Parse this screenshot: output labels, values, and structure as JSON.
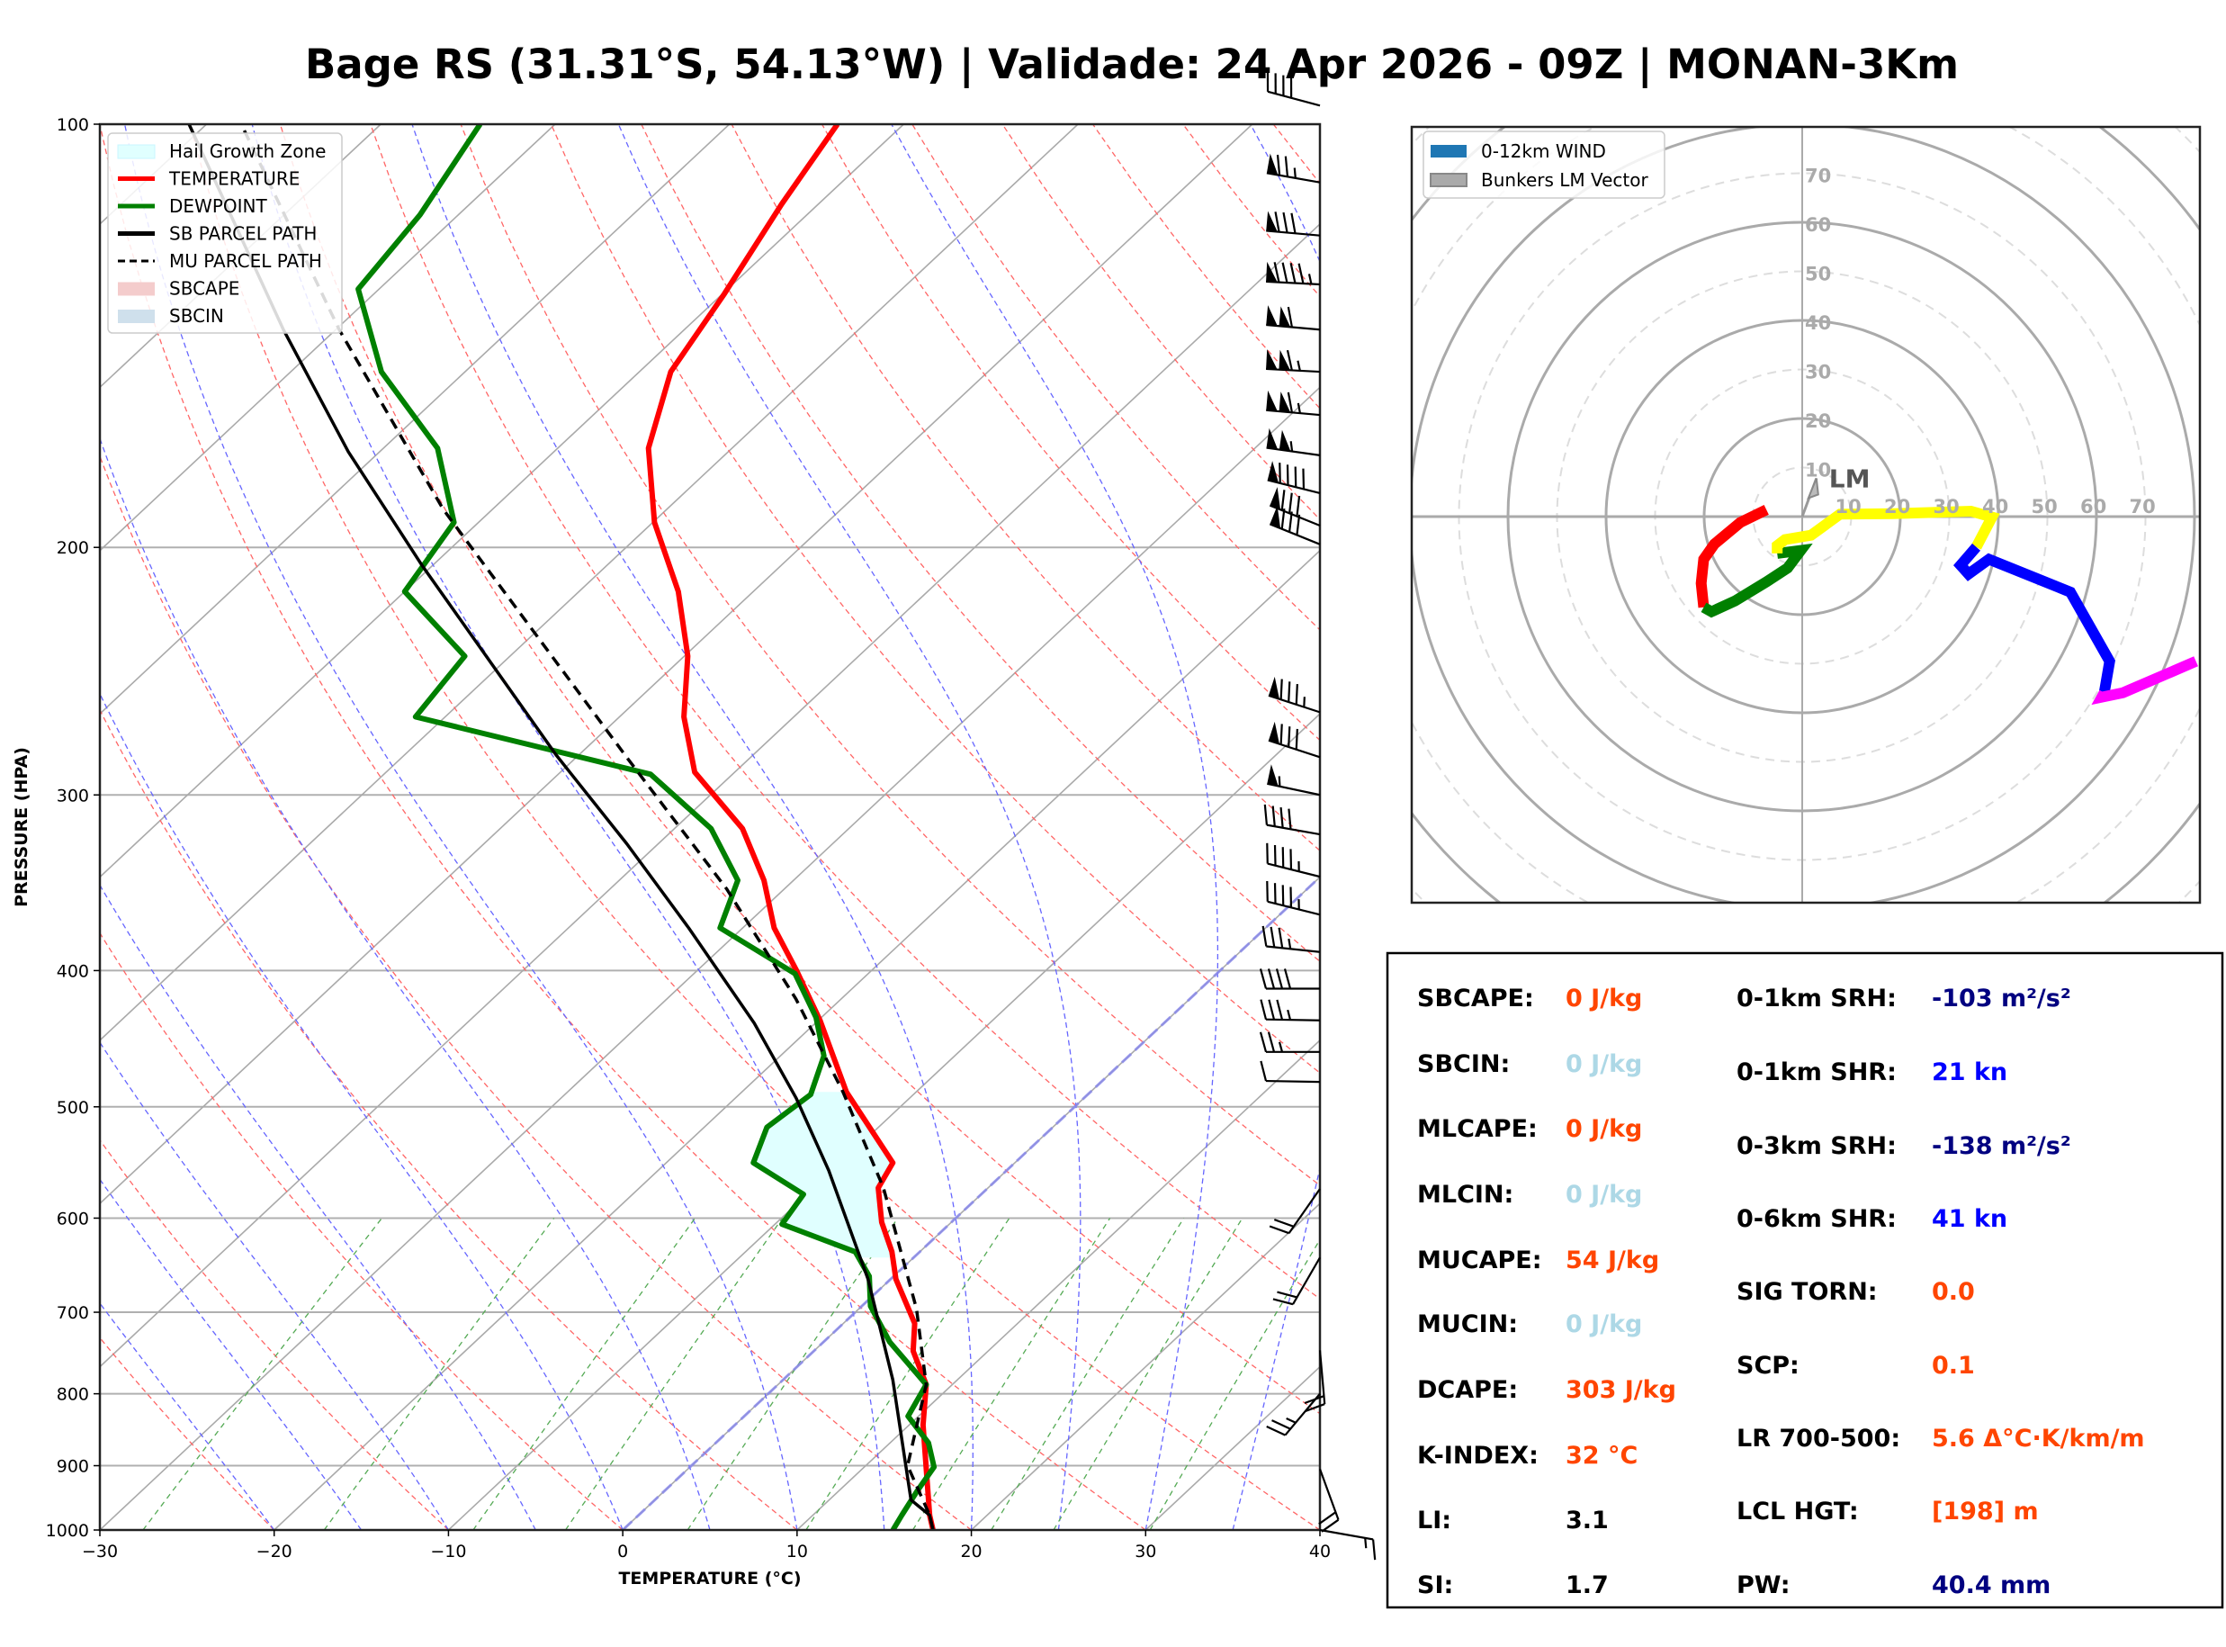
{
  "title": "Bage RS (31.31°S, 54.13°W) | Validade: 24 Apr 2026 - 09Z | MONAN-3Km",
  "chart_data": [
    {
      "type": "line",
      "name": "skew-t",
      "title": "Bage RS (31.31°S, 54.13°W) | Validade: 24 Apr 2026 - 09Z | MONAN-3Km",
      "xlabel": "TEMPERATURE (°C)",
      "ylabel": "PRESSURE (HPA)",
      "xlim": [
        -30,
        40
      ],
      "ylim": [
        1000,
        100
      ],
      "yscale": "log",
      "x_ticks": [
        "−30",
        "−20",
        "−10",
        "0",
        "10",
        "20",
        "30",
        "40"
      ],
      "x_tick_values": [
        -30,
        -20,
        -10,
        0,
        10,
        20,
        30,
        40
      ],
      "y_ticks": [
        "100",
        "200",
        "300",
        "400",
        "500",
        "600",
        "700",
        "800",
        "900",
        "1000"
      ],
      "y_tick_values": [
        100,
        200,
        300,
        400,
        500,
        600,
        700,
        800,
        900,
        1000
      ],
      "legend_position": "top-left",
      "legend": [
        {
          "label": "Hail Growth Zone",
          "kind": "patch",
          "color": "#e0ffff",
          "edge": "#c8f6ff"
        },
        {
          "label": "TEMPERATURE",
          "kind": "line",
          "color": "#ff0000"
        },
        {
          "label": "DEWPOINT",
          "kind": "line",
          "color": "#008000"
        },
        {
          "label": "SB PARCEL PATH",
          "kind": "line",
          "color": "#000000"
        },
        {
          "label": "MU PARCEL PATH",
          "kind": "dashed",
          "color": "#000000"
        },
        {
          "label": "SBCAPE",
          "kind": "patch",
          "color": "#f4cccc"
        },
        {
          "label": "SBCIN",
          "kind": "patch",
          "color": "#cfe0ec"
        }
      ],
      "series": [
        {
          "name": "TEMPERATURE",
          "color": "#ff0000",
          "p": [
            1000,
            976,
            842,
            788,
            746,
            713,
            663,
            634,
            604,
            571,
            548,
            488,
            434,
            400,
            373,
            345,
            317,
            289,
            264,
            239,
            215,
            192,
            170,
            150,
            132,
            114,
            100
          ],
          "t": [
            17.8,
            16.7,
            10.8,
            8.5,
            5.7,
            4.1,
            0.3,
            -1.6,
            -4.0,
            -6.3,
            -7.0,
            -14.0,
            -19.9,
            -24.3,
            -28.2,
            -31.7,
            -36.1,
            -42.3,
            -46.3,
            -49.8,
            -54.3,
            -59.9,
            -64.8,
            -68.2,
            -69.9,
            -72.1,
            -73.8
          ]
        },
        {
          "name": "DEWPOINT",
          "color": "#008000",
          "p": [
            1000,
            976,
            938,
            902,
            867,
            830,
            788,
            735,
            693,
            660,
            634,
            606,
            577,
            548,
            517,
            490,
            460,
            432,
            402,
            373,
            345,
            317,
            290,
            264,
            239,
            215,
            192,
            170,
            150,
            131,
            116,
            100
          ],
          "t": [
            15.5,
            15.1,
            14.5,
            14.0,
            12.2,
            9.4,
            8.5,
            3.8,
            0.5,
            -1.4,
            -3.7,
            -9.6,
            -10.2,
            -15.0,
            -16.4,
            -15.9,
            -17.5,
            -20.3,
            -24.2,
            -31.3,
            -33.2,
            -37.9,
            -44.7,
            -61.7,
            -62.6,
            -70.0,
            -71.4,
            -76.9,
            -84.8,
            -91.2,
            -92.2,
            -94.3
          ]
        },
        {
          "name": "SB PARCEL PATH",
          "color": "#000000",
          "style": "solid",
          "p": [
            1000,
            976,
            952,
            782,
            663,
            555,
            493,
            436,
            373,
            325,
            281,
            206,
            171,
            140,
            100
          ],
          "t": [
            17.8,
            16.7,
            14.7,
            6.3,
            -1.3,
            -10.2,
            -16.5,
            -23.5,
            -33.1,
            -41.8,
            -51.3,
            -70.6,
            -81.8,
            -93.0,
            -111.0
          ]
        },
        {
          "name": "MU PARCEL PATH",
          "color": "#000000",
          "style": "dashed",
          "p": [
            1000,
            976,
            900,
            788,
            696,
            571,
            488,
            419,
            350,
            283,
            188,
            140,
            100
          ],
          "t": [
            17.8,
            16.7,
            12.4,
            8.5,
            3.3,
            -6.0,
            -14.2,
            -22.6,
            -33.3,
            -46.9,
            -72.8,
            -89.8,
            -108.0
          ]
        }
      ],
      "hail_growth_zone_hpa": [
        488,
        640
      ],
      "wind_barbs": [
        {
          "p": 97,
          "speed_kt": 40,
          "dir_deg": 285
        },
        {
          "p": 110,
          "speed_kt": 75,
          "dir_deg": 280
        },
        {
          "p": 120,
          "speed_kt": 80,
          "dir_deg": 275
        },
        {
          "p": 130,
          "speed_kt": 95,
          "dir_deg": 273
        },
        {
          "p": 140,
          "speed_kt": 110,
          "dir_deg": 275
        },
        {
          "p": 150,
          "speed_kt": 115,
          "dir_deg": 273
        },
        {
          "p": 161,
          "speed_kt": 115,
          "dir_deg": 275
        },
        {
          "p": 172,
          "speed_kt": 105,
          "dir_deg": 278
        },
        {
          "p": 183,
          "speed_kt": 90,
          "dir_deg": 284
        },
        {
          "p": 193,
          "speed_kt": 80,
          "dir_deg": 292
        },
        {
          "p": 199,
          "speed_kt": 80,
          "dir_deg": 292
        },
        {
          "p": 262,
          "speed_kt": 85,
          "dir_deg": 288
        },
        {
          "p": 282,
          "speed_kt": 80,
          "dir_deg": 288
        },
        {
          "p": 300,
          "speed_kt": 55,
          "dir_deg": 282
        },
        {
          "p": 320,
          "speed_kt": 40,
          "dir_deg": 280
        },
        {
          "p": 343,
          "speed_kt": 45,
          "dir_deg": 284
        },
        {
          "p": 365,
          "speed_kt": 45,
          "dir_deg": 284
        },
        {
          "p": 388,
          "speed_kt": 35,
          "dir_deg": 276
        },
        {
          "p": 412,
          "speed_kt": 40,
          "dir_deg": 270
        },
        {
          "p": 434,
          "speed_kt": 35,
          "dir_deg": 271
        },
        {
          "p": 457,
          "speed_kt": 25,
          "dir_deg": 270
        },
        {
          "p": 480,
          "speed_kt": 10,
          "dir_deg": 271
        },
        {
          "p": 572,
          "speed_kt": 20,
          "dir_deg": 215
        },
        {
          "p": 640,
          "speed_kt": 20,
          "dir_deg": 210
        },
        {
          "p": 745,
          "speed_kt": 20,
          "dir_deg": 175
        },
        {
          "p": 800,
          "speed_kt": 25,
          "dir_deg": 220
        },
        {
          "p": 905,
          "speed_kt": 20,
          "dir_deg": 160
        },
        {
          "p": 1000,
          "speed_kt": 15,
          "dir_deg": 100
        }
      ]
    },
    {
      "type": "line",
      "name": "hodograph",
      "xlim": [
        -80,
        80
      ],
      "ylim": [
        -80,
        80
      ],
      "ring_step_kt": 10,
      "ring_labels": [
        "10",
        "20",
        "30",
        "40",
        "50",
        "60",
        "70"
      ],
      "legend_position": "top-left",
      "legend": [
        {
          "label": "0-12km WIND",
          "color": "#1f77b4"
        },
        {
          "label": "Bunkers LM Vector",
          "color": "#aaaaaa"
        }
      ],
      "storm_motion_label": "LM",
      "storm_motion_uv": [
        2.9,
        7.8
      ],
      "segments": [
        {
          "name": "0-1km",
          "color": "#ff0000",
          "u": [
            -7.3,
            -12.6,
            -17.9,
            -20.1,
            -20.6,
            -20.1
          ],
          "v": [
            1.4,
            -1.2,
            -5.6,
            -8.7,
            -13.6,
            -18.5
          ]
        },
        {
          "name": "1-3km",
          "color": "#008000",
          "u": [
            -20.1,
            -18.5,
            -13.7,
            -7.3,
            -3.0,
            -0.3,
            -5.1
          ],
          "v": [
            -18.5,
            -19.4,
            -17.2,
            -13.3,
            -10.5,
            -6.9,
            -7.5
          ]
        },
        {
          "name": "3-6km",
          "color": "#ffff00",
          "u": [
            -5.1,
            -5.1,
            -3.5,
            1.8,
            7.7,
            18.4,
            34.4,
            38.7,
            35.5
          ],
          "v": [
            -7.5,
            -5.9,
            -4.7,
            -3.8,
            0.5,
            0.6,
            1.1,
            -0.1,
            -6.2
          ]
        },
        {
          "name": "6-9km",
          "color": "#0000ff",
          "u": [
            35.5,
            32.3,
            33.9,
            38.1,
            54.7,
            62.7,
            61.6
          ],
          "v": [
            -6.2,
            -9.9,
            -11.7,
            -8.7,
            -15.4,
            -29.5,
            -35.9
          ]
        },
        {
          "name": "9-12km",
          "color": "#ff00ff",
          "u": [
            61.6,
            61.1,
            65.4,
            80.3
          ],
          "v": [
            -35.9,
            -36.8,
            -35.9,
            -29.5
          ]
        }
      ]
    }
  ],
  "stats": {
    "left": [
      {
        "label": "SBCAPE:",
        "value": "0 J/kg",
        "color": "#ff4500"
      },
      {
        "label": "SBCIN:",
        "value": "0 J/kg",
        "color": "#add8e6"
      },
      {
        "label": "MLCAPE:",
        "value": "0 J/kg",
        "color": "#ff4500"
      },
      {
        "label": "MLCIN:",
        "value": "0 J/kg",
        "color": "#add8e6"
      },
      {
        "label": "MUCAPE:",
        "value": "54 J/kg",
        "color": "#ff4500"
      },
      {
        "label": "MUCIN:",
        "value": "0 J/kg",
        "color": "#add8e6"
      },
      {
        "label": "DCAPE:",
        "value": "303 J/kg",
        "color": "#ff4500"
      },
      {
        "label": "K-INDEX:",
        "value": "32 °C",
        "color": "#ff4500"
      },
      {
        "label": "LI:",
        "value": "3.1",
        "color": "#000000"
      },
      {
        "label": "SI:",
        "value": "1.7",
        "color": "#000000"
      }
    ],
    "right": [
      {
        "label": "0-1km SRH:",
        "value": "-103 m²/s²",
        "color": "#000080"
      },
      {
        "label": "0-1km SHR:",
        "value": "21 kn",
        "color": "#0000ff"
      },
      {
        "label": "0-3km SRH:",
        "value": "-138 m²/s²",
        "color": "#000080"
      },
      {
        "label": "0-6km SHR:",
        "value": "41 kn",
        "color": "#0000ff"
      },
      {
        "label": "SIG TORN:",
        "value": "0.0",
        "color": "#ff4500"
      },
      {
        "label": "SCP:",
        "value": "0.1",
        "color": "#ff4500"
      },
      {
        "label": "LR 700-500:",
        "value": "5.6 Δ°C·K/km/m",
        "color": "#ff4500"
      },
      {
        "label": "LCL HGT:",
        "value": "[198] m",
        "color": "#ff4500"
      },
      {
        "label": "PW:",
        "value": "40.4 mm",
        "color": "#000080"
      }
    ]
  }
}
